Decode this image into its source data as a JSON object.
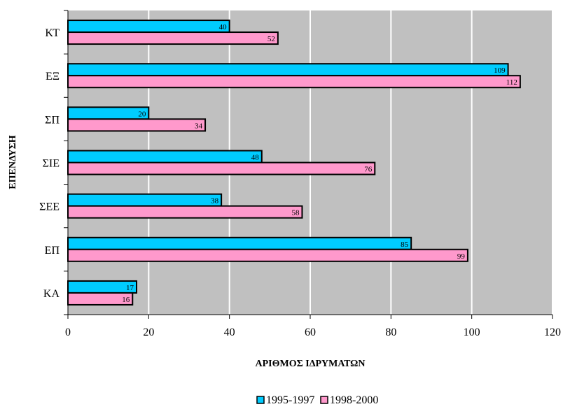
{
  "chart_data": {
    "type": "bar",
    "orientation": "horizontal",
    "categories": [
      "ΚΤ",
      "ΕΞ",
      "ΣΠ",
      "ΣΙΕ",
      "ΣΕΕ",
      "ΕΠ",
      "ΚΑ"
    ],
    "series": [
      {
        "name": "1995-1997",
        "values": [
          40,
          109,
          20,
          48,
          38,
          85,
          17
        ],
        "color": "#00ccff"
      },
      {
        "name": "1998-2000",
        "values": [
          52,
          112,
          34,
          76,
          58,
          99,
          16
        ],
        "color": "#ff99cc"
      }
    ],
    "xlabel": "ΑΡΙΘΜΟΣ  ΙΔΡΥΜΑΤΩΝ",
    "ylabel": "ΕΠΕΝΔΥΣΗ",
    "xlim": [
      0,
      120
    ],
    "xticks": [
      "0",
      "20",
      "40",
      "60",
      "80",
      "100",
      "120"
    ],
    "plot_background": "#c0c0c0",
    "grid": "vertical, white",
    "legend": "bottom-center"
  }
}
